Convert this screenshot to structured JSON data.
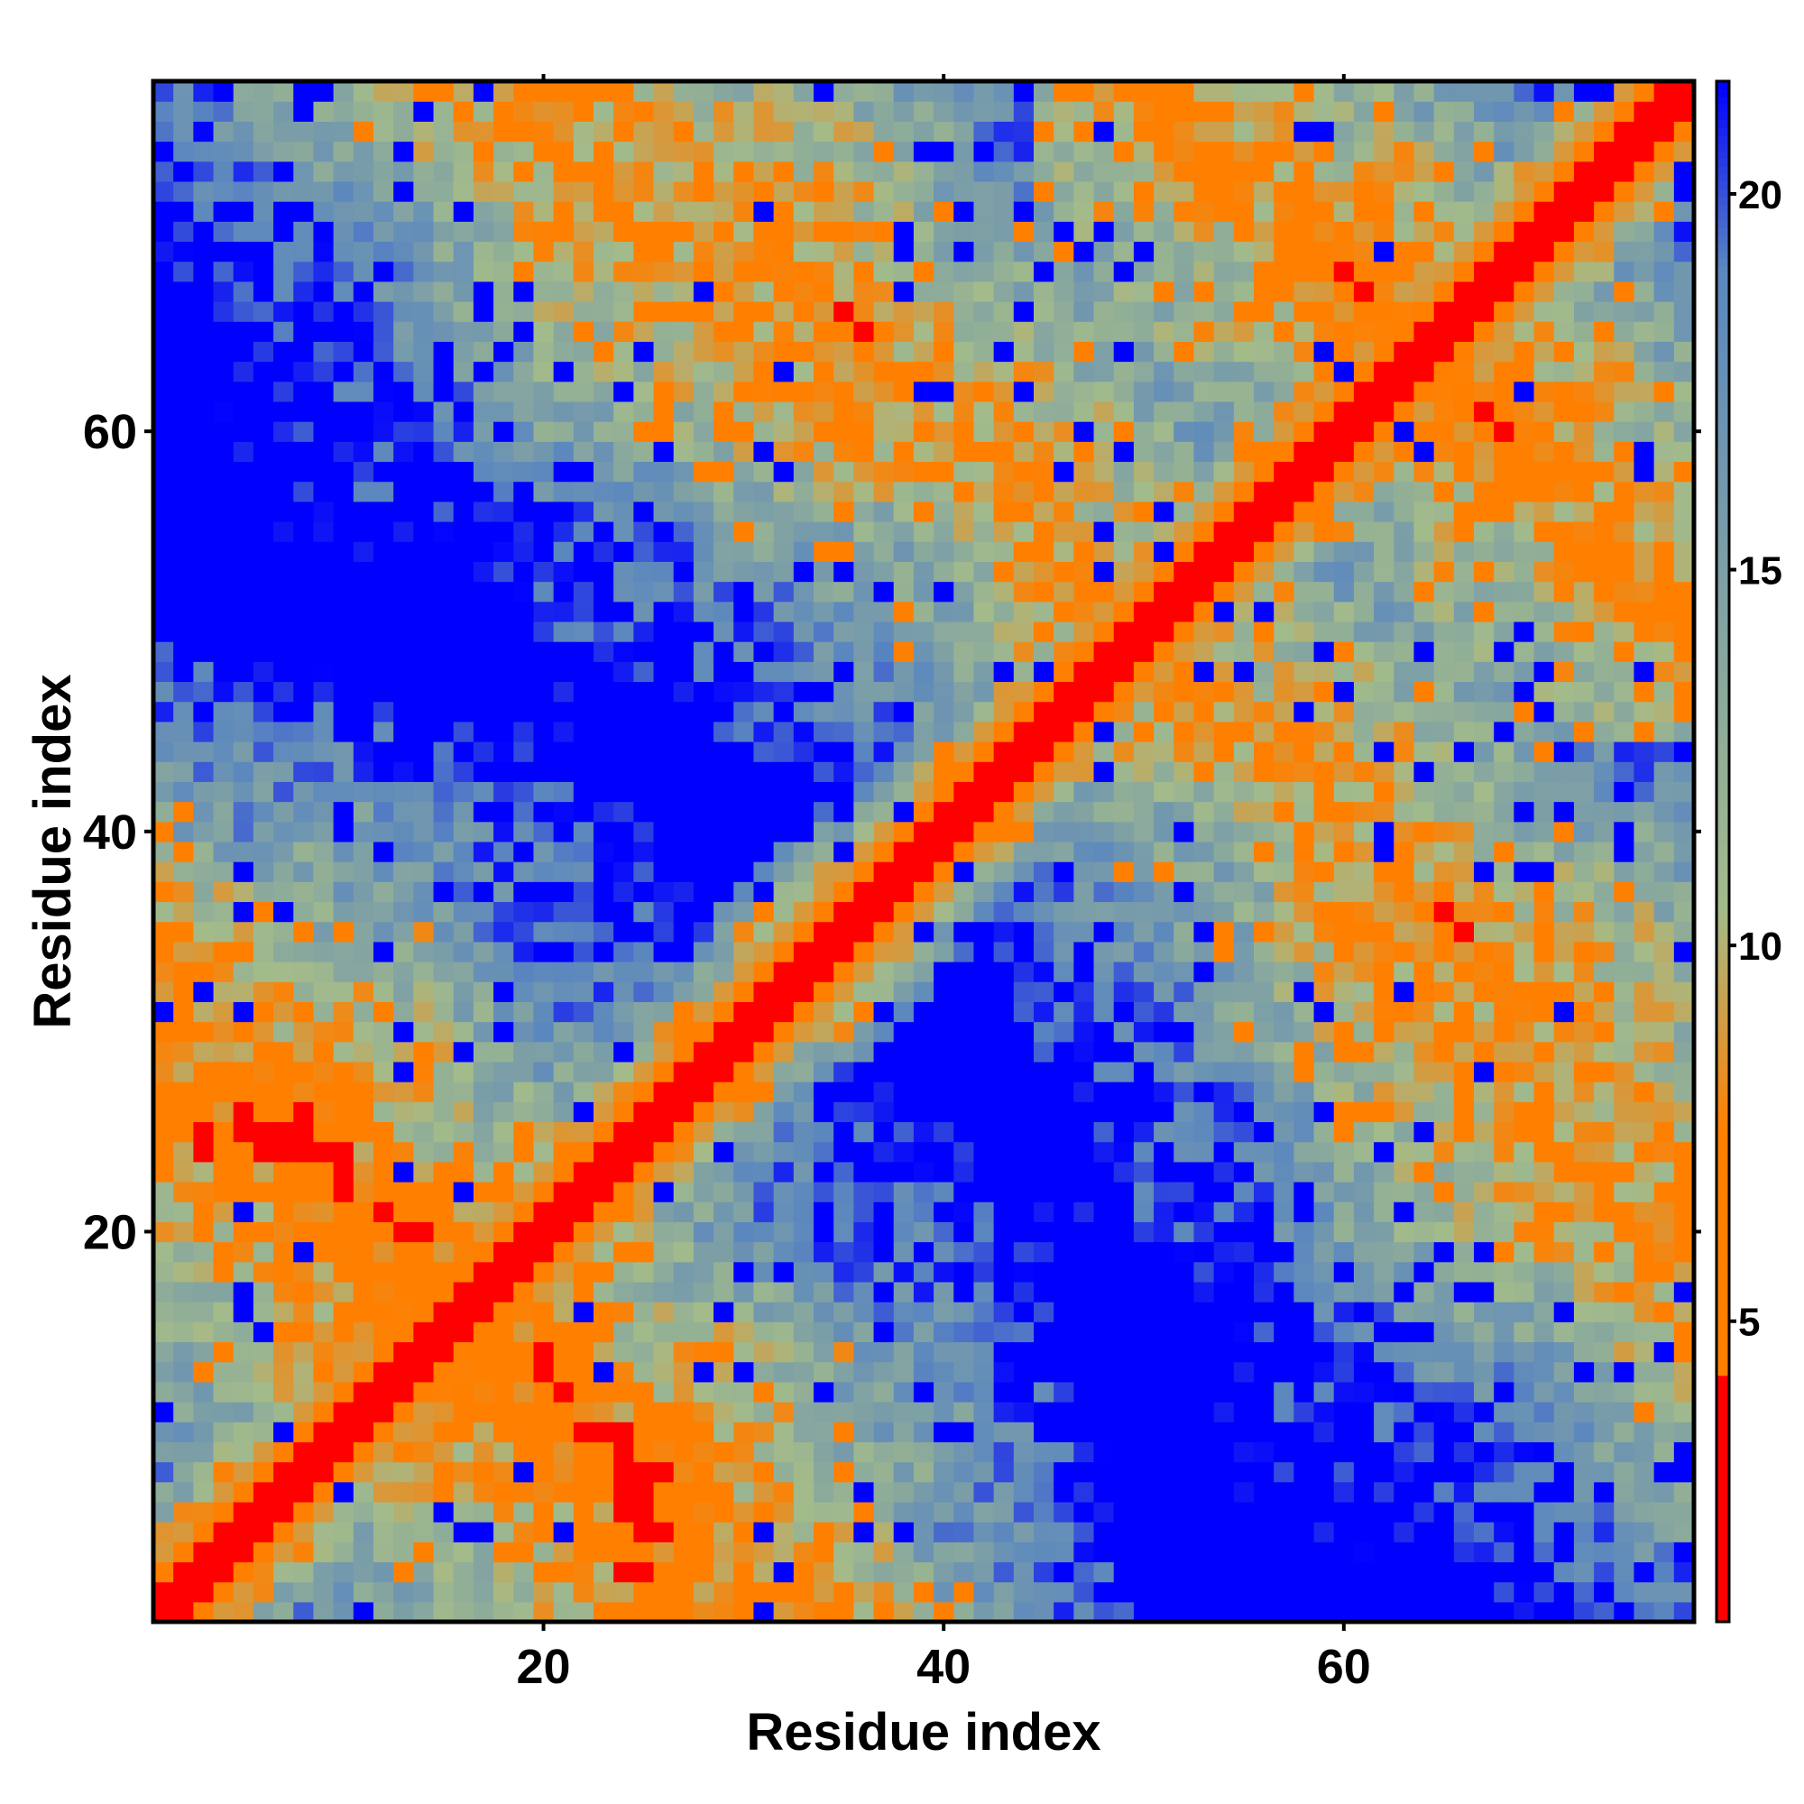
{
  "chart_data": {
    "type": "heatmap",
    "title": "",
    "xlabel": "Residue index",
    "ylabel": "Residue index",
    "n": 77,
    "xlim": [
      1,
      77
    ],
    "ylim": [
      1,
      77
    ],
    "x_ticks": [
      20,
      40,
      60
    ],
    "y_ticks": [
      20,
      40,
      60
    ],
    "colorbar": {
      "range": [
        1,
        21.5
      ],
      "ticks": [
        5,
        10,
        15,
        20
      ],
      "colors": [
        "#ff0000",
        "#ff7f00",
        "#a3bb8a",
        "#5b87bf",
        "#0000ff"
      ],
      "stops": [
        1,
        7.5,
        10.5,
        19,
        21.5
      ]
    },
    "description_of_values": "symmetric pairwise residue distance map; values near 1 on the diagonal, saturating at the cap (~21.5) for distant pairs; off-diagonal contact regions near residue pairs (1-30, 1-30 band), (40-77, 1-40) and (1-40, 40-77) arms",
    "cutoff": 21.5
  }
}
